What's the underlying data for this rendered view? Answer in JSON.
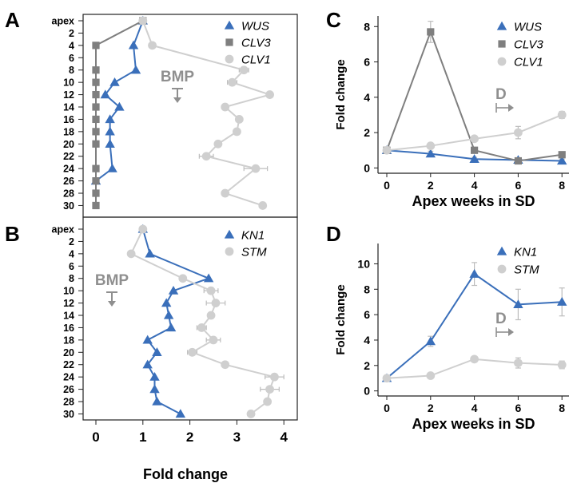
{
  "colors": {
    "WUS": "#3a6fba",
    "CLV3": "#7f7f7f",
    "CLV1": "#cfcfcf",
    "KN1": "#3a6fba",
    "STM": "#cfcfcf",
    "annotation": "#8f8f8f",
    "error_bar": "#bdbdbd"
  },
  "chart_data": [
    {
      "panel": "A",
      "type": "line",
      "orientation": "vertical-profile",
      "note": "BMP",
      "y_labels": [
        "apex",
        "2",
        "4",
        "6",
        "8",
        "10",
        "12",
        "14",
        "16",
        "18",
        "20",
        "22",
        "24",
        "26",
        "28",
        "30"
      ],
      "x_range": [
        -0.3,
        4.3
      ],
      "series": [
        {
          "name": "WUS",
          "marker": "triangle",
          "y": [
            "apex",
            "4",
            "8",
            "10",
            "12",
            "14",
            "16",
            "18",
            "20",
            "24",
            "26"
          ],
          "values": [
            1.0,
            0.8,
            0.85,
            0.4,
            0.2,
            0.5,
            0.3,
            0.3,
            0.3,
            0.35,
            0.0
          ]
        },
        {
          "name": "CLV3",
          "marker": "square",
          "y": [
            "apex",
            "4",
            "8",
            "10",
            "12",
            "14",
            "16",
            "18",
            "20",
            "24",
            "26",
            "28",
            "30"
          ],
          "values": [
            1.0,
            0.0,
            0.0,
            0.0,
            0.0,
            0.0,
            0.0,
            0.0,
            0.0,
            0.0,
            0.0,
            0.0,
            0.0
          ]
        },
        {
          "name": "CLV1",
          "marker": "circle",
          "y": [
            "apex",
            "4",
            "8",
            "10",
            "12",
            "14",
            "16",
            "18",
            "20",
            "22",
            "24",
            "28",
            "30"
          ],
          "values": [
            1.0,
            1.2,
            3.15,
            2.9,
            3.7,
            2.75,
            3.05,
            3.0,
            2.6,
            2.35,
            3.4,
            2.75,
            3.55
          ],
          "errors": [
            0,
            0,
            0.1,
            0.1,
            0,
            0,
            0,
            0,
            0,
            0.15,
            0.25,
            0,
            0.05
          ]
        }
      ]
    },
    {
      "panel": "B",
      "type": "line",
      "orientation": "vertical-profile",
      "note": "BMP",
      "y_labels": [
        "apex",
        "2",
        "4",
        "6",
        "8",
        "10",
        "12",
        "14",
        "16",
        "18",
        "20",
        "22",
        "24",
        "26",
        "28",
        "30"
      ],
      "x_range": [
        -0.3,
        4.3
      ],
      "x_ticks": [
        "0",
        "1",
        "2",
        "3",
        "4"
      ],
      "xlabel": "Fold change",
      "series": [
        {
          "name": "KN1",
          "marker": "triangle",
          "y": [
            "apex",
            "4",
            "8",
            "10",
            "12",
            "14",
            "16",
            "18",
            "20",
            "22",
            "24",
            "26",
            "28",
            "30"
          ],
          "values": [
            1.0,
            1.15,
            2.4,
            1.65,
            1.5,
            1.55,
            1.6,
            1.1,
            1.3,
            1.1,
            1.25,
            1.25,
            1.3,
            1.8
          ]
        },
        {
          "name": "STM",
          "marker": "circle",
          "y": [
            "apex",
            "4",
            "8",
            "10",
            "12",
            "14",
            "16",
            "18",
            "20",
            "22",
            "24",
            "26",
            "28",
            "30"
          ],
          "values": [
            1.0,
            0.75,
            1.85,
            2.45,
            2.55,
            2.45,
            2.25,
            2.5,
            2.05,
            2.75,
            3.8,
            3.7,
            3.65,
            3.3
          ],
          "errors": [
            0,
            0,
            0.05,
            0.15,
            0.2,
            0,
            0.1,
            0.15,
            0.1,
            0,
            0.2,
            0.2,
            0,
            0
          ]
        }
      ]
    },
    {
      "panel": "C",
      "type": "line",
      "x": [
        0,
        2,
        4,
        6,
        8
      ],
      "x_ticks": [
        "0",
        "2",
        "4",
        "6",
        "8"
      ],
      "y_ticks": [
        "0",
        "2",
        "4",
        "6",
        "8"
      ],
      "ylim": [
        -0.3,
        8.6
      ],
      "ylabel": "Fold change",
      "xlabel": "Apex weeks in SD",
      "note": "D",
      "series": [
        {
          "name": "WUS",
          "marker": "triangle",
          "values": [
            1.0,
            0.8,
            0.5,
            0.45,
            0.4
          ],
          "errors": [
            0.1,
            0.15,
            0.1,
            0.1,
            0.1
          ]
        },
        {
          "name": "CLV3",
          "marker": "square",
          "values": [
            1.0,
            7.7,
            1.0,
            0.4,
            0.75
          ],
          "errors": [
            0.1,
            0.6,
            0.1,
            0.1,
            0.1
          ]
        },
        {
          "name": "CLV1",
          "marker": "circle",
          "values": [
            1.0,
            1.25,
            1.65,
            2.0,
            3.0
          ],
          "errors": [
            0.05,
            0.1,
            0.15,
            0.35,
            0.2
          ]
        }
      ]
    },
    {
      "panel": "D",
      "type": "line",
      "x": [
        0,
        2,
        4,
        6,
        8
      ],
      "x_ticks": [
        "0",
        "2",
        "4",
        "6",
        "8"
      ],
      "y_ticks": [
        "0",
        "2",
        "4",
        "6",
        "8",
        "10"
      ],
      "ylim": [
        -0.4,
        11.6
      ],
      "ylabel": "Fold change",
      "xlabel": "Apex weeks in SD",
      "note": "D",
      "series": [
        {
          "name": "KN1",
          "marker": "triangle",
          "values": [
            1.0,
            3.9,
            9.2,
            6.8,
            7.0
          ],
          "errors": [
            0.1,
            0.4,
            0.9,
            1.2,
            1.1
          ]
        },
        {
          "name": "STM",
          "marker": "circle",
          "values": [
            1.0,
            1.2,
            2.5,
            2.2,
            2.05
          ],
          "errors": [
            0.1,
            0.15,
            0.2,
            0.4,
            0.3
          ]
        }
      ]
    }
  ]
}
